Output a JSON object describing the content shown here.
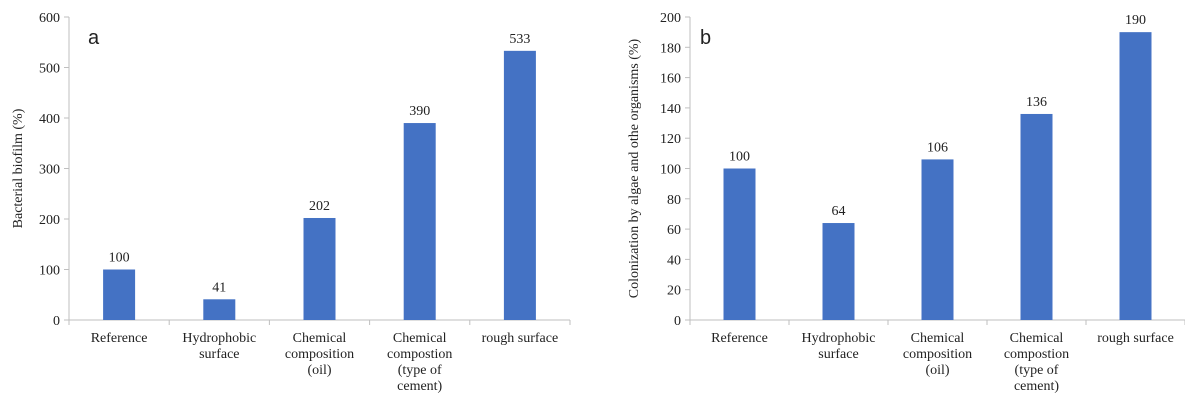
{
  "chart_data": [
    {
      "type": "bar",
      "panel_label": "a",
      "title": "",
      "xlabel": "",
      "ylabel": "Bacterial biofilm (%)",
      "ylim": [
        0,
        600
      ],
      "yticks": [
        0,
        100,
        200,
        300,
        400,
        500,
        600
      ],
      "grid": false,
      "bar_color": "#4472C4",
      "categories": [
        [
          "Reference"
        ],
        [
          "Hydrophobic",
          "surface"
        ],
        [
          "Chemical",
          "composition",
          "(oil)"
        ],
        [
          "Chemical",
          "compostion",
          "(type of",
          "cement)"
        ],
        [
          "rough surface"
        ]
      ],
      "values": [
        100,
        41,
        202,
        390,
        533
      ],
      "value_labels": [
        "100",
        "41",
        "202",
        "390",
        "533"
      ]
    },
    {
      "type": "bar",
      "panel_label": "b",
      "title": "",
      "xlabel": "",
      "ylabel": "Colonization by algae and othe organisms (%)",
      "ylim": [
        0,
        200
      ],
      "yticks": [
        0,
        20,
        40,
        60,
        80,
        100,
        120,
        140,
        160,
        180,
        200
      ],
      "grid": false,
      "bar_color": "#4472C4",
      "categories": [
        [
          "Reference"
        ],
        [
          "Hydrophobic",
          "surface"
        ],
        [
          "Chemical",
          "composition",
          "(oil)"
        ],
        [
          "Chemical",
          "compostion",
          "(type of",
          "cement)"
        ],
        [
          "rough surface"
        ]
      ],
      "values": [
        100,
        64,
        106,
        136,
        190
      ],
      "value_labels": [
        "100",
        "64",
        "106",
        "136",
        "190"
      ]
    }
  ]
}
